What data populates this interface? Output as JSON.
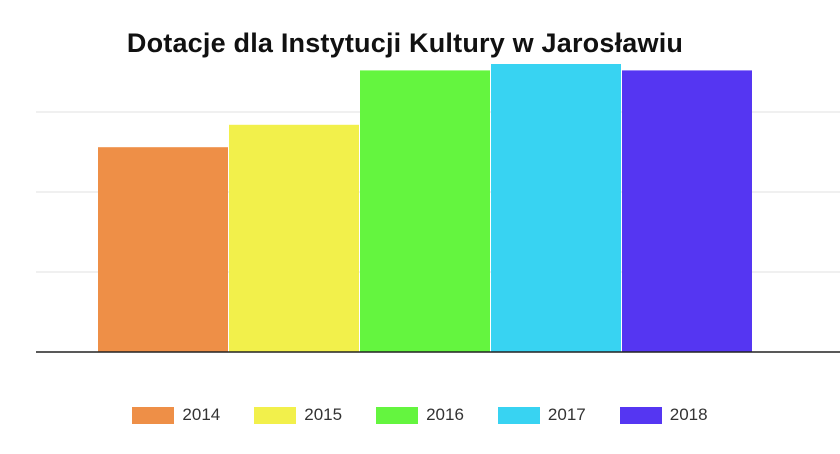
{
  "chart_data": {
    "type": "bar",
    "title": "Dotacje dla Instytucji Kultury w Jarosławiu",
    "xlabel": "",
    "ylabel": "",
    "ylim": [
      0,
      100
    ],
    "grid": true,
    "legend_position": "bottom",
    "series": [
      {
        "name": "2014",
        "values": [
          64
        ],
        "color": "#ee8f47"
      },
      {
        "name": "2015",
        "values": [
          71
        ],
        "color": "#f2f04b"
      },
      {
        "name": "2016",
        "values": [
          88
        ],
        "color": "#64f53f"
      },
      {
        "name": "2017",
        "values": [
          90
        ],
        "color": "#38d3f2"
      },
      {
        "name": "2018",
        "values": [
          88
        ],
        "color": "#5536f2"
      }
    ]
  }
}
